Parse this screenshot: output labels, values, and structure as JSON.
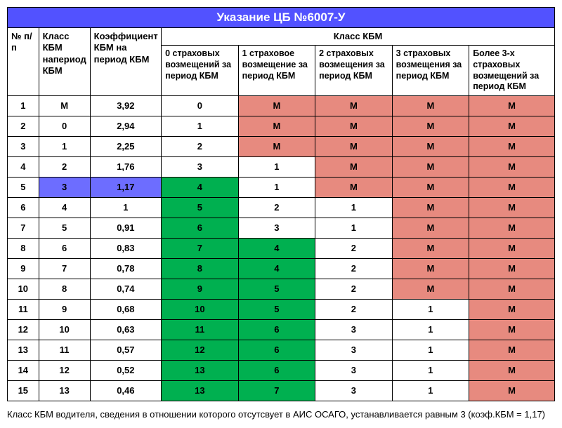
{
  "title": "Указание ЦБ №6007-У",
  "headers": {
    "n": "№ п/п",
    "class_period": "Класс КБМ напериод КБМ",
    "coef": "Коэффициент КБМ на период КБМ",
    "group": "Класс КБМ",
    "c0": "0 страховых возмещений за период КБМ",
    "c1": "1 страховое возмещение за период КБМ",
    "c2": "2 страховых возмещения за период КБМ",
    "c3": "3 страховых возмещения за период КБМ",
    "c4": "Более 3-х страховых возмещений за период КБМ"
  },
  "colors": {
    "title_bg": "#5252ff",
    "highlight": "#6d6dff",
    "green": "#00b050",
    "red": "#e78a7f",
    "white": "#ffffff"
  },
  "rows": [
    {
      "n": "1",
      "cls": "М",
      "coef": "3,92",
      "c0": "0",
      "c1": "М",
      "c2": "М",
      "c3": "М",
      "c4": "М"
    },
    {
      "n": "2",
      "cls": "0",
      "coef": "2,94",
      "c0": "1",
      "c1": "М",
      "c2": "М",
      "c3": "М",
      "c4": "М"
    },
    {
      "n": "3",
      "cls": "1",
      "coef": "2,25",
      "c0": "2",
      "c1": "М",
      "c2": "М",
      "c3": "М",
      "c4": "М"
    },
    {
      "n": "4",
      "cls": "2",
      "coef": "1,76",
      "c0": "3",
      "c1": "1",
      "c2": "М",
      "c3": "М",
      "c4": "М"
    },
    {
      "n": "5",
      "cls": "3",
      "coef": "1,17",
      "c0": "4",
      "c1": "1",
      "c2": "М",
      "c3": "М",
      "c4": "М"
    },
    {
      "n": "6",
      "cls": "4",
      "coef": "1",
      "c0": "5",
      "c1": "2",
      "c2": "1",
      "c3": "М",
      "c4": "М"
    },
    {
      "n": "7",
      "cls": "5",
      "coef": "0,91",
      "c0": "6",
      "c1": "3",
      "c2": "1",
      "c3": "М",
      "c4": "М"
    },
    {
      "n": "8",
      "cls": "6",
      "coef": "0,83",
      "c0": "7",
      "c1": "4",
      "c2": "2",
      "c3": "М",
      "c4": "М"
    },
    {
      "n": "9",
      "cls": "7",
      "coef": "0,78",
      "c0": "8",
      "c1": "4",
      "c2": "2",
      "c3": "М",
      "c4": "М"
    },
    {
      "n": "10",
      "cls": "8",
      "coef": "0,74",
      "c0": "9",
      "c1": "5",
      "c2": "2",
      "c3": "М",
      "c4": "М"
    },
    {
      "n": "11",
      "cls": "9",
      "coef": "0,68",
      "c0": "10",
      "c1": "5",
      "c2": "2",
      "c3": "1",
      "c4": "М"
    },
    {
      "n": "12",
      "cls": "10",
      "coef": "0,63",
      "c0": "11",
      "c1": "6",
      "c2": "3",
      "c3": "1",
      "c4": "М"
    },
    {
      "n": "13",
      "cls": "11",
      "coef": "0,57",
      "c0": "12",
      "c1": "6",
      "c2": "3",
      "c3": "1",
      "c4": "М"
    },
    {
      "n": "14",
      "cls": "12",
      "coef": "0,52",
      "c0": "13",
      "c1": "6",
      "c2": "3",
      "c3": "1",
      "c4": "М"
    },
    {
      "n": "15",
      "cls": "13",
      "coef": "0,46",
      "c0": "13",
      "c1": "7",
      "c2": "3",
      "c3": "1",
      "c4": "М"
    }
  ],
  "cell_styles": {
    "highlight": {
      "5": [
        "cls",
        "coef"
      ]
    },
    "green": {
      "5": [
        "c0"
      ],
      "6": [
        "c0"
      ],
      "7": [
        "c0"
      ],
      "8": [
        "c0",
        "c1"
      ],
      "9": [
        "c0",
        "c1"
      ],
      "10": [
        "c0",
        "c1"
      ],
      "11": [
        "c0",
        "c1"
      ],
      "12": [
        "c0",
        "c1"
      ],
      "13": [
        "c0",
        "c1"
      ],
      "14": [
        "c0",
        "c1"
      ],
      "15": [
        "c0",
        "c1"
      ]
    },
    "red": {
      "1": [
        "c1",
        "c2",
        "c3",
        "c4"
      ],
      "2": [
        "c1",
        "c2",
        "c3",
        "c4"
      ],
      "3": [
        "c1",
        "c2",
        "c3",
        "c4"
      ],
      "4": [
        "c2",
        "c3",
        "c4"
      ],
      "5": [
        "c2",
        "c3",
        "c4"
      ],
      "6": [
        "c3",
        "c4"
      ],
      "7": [
        "c3",
        "c4"
      ],
      "8": [
        "c3",
        "c4"
      ],
      "9": [
        "c3",
        "c4"
      ],
      "10": [
        "c3",
        "c4"
      ],
      "11": [
        "c4"
      ],
      "12": [
        "c4"
      ],
      "13": [
        "c4"
      ],
      "14": [
        "c4"
      ],
      "15": [
        "c4"
      ]
    }
  },
  "footnote": "Класс КБМ водителя, сведения в отношении которого отсутсвует в АИС ОСАГО, устанавливается равным 3 (коэф.КБМ = 1,17)"
}
